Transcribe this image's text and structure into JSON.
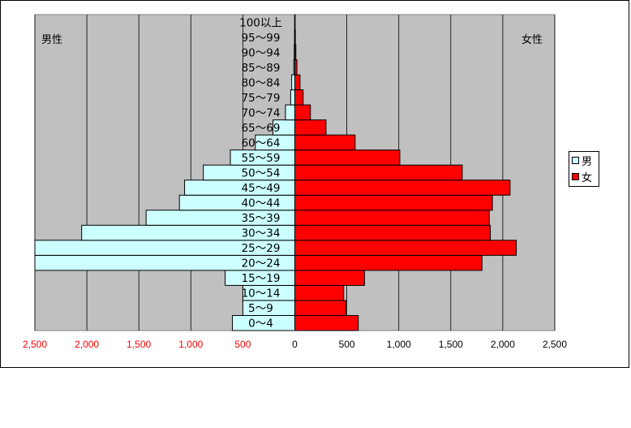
{
  "chart_data": {
    "type": "bar",
    "orientation": "horizontal-pyramid",
    "left_label": "男性",
    "right_label": "女性",
    "categories": [
      "0～4",
      "5～9",
      "10～14",
      "15～19",
      "20～24",
      "25～29",
      "30～34",
      "35～39",
      "40～44",
      "45～49",
      "50～54",
      "55～59",
      "60～64",
      "65～69",
      "70～74",
      "75～79",
      "80～84",
      "85～89",
      "90～94",
      "95～99",
      "100以上"
    ],
    "series": [
      {
        "name": "男",
        "color": "#ccffff",
        "values": [
          600,
          500,
          500,
          670,
          2500,
          2500,
          2050,
          1430,
          1110,
          1060,
          880,
          620,
          380,
          210,
          90,
          40,
          30,
          10,
          5,
          3,
          2
        ]
      },
      {
        "name": "女",
        "color": "#ff0000",
        "values": [
          610,
          490,
          470,
          670,
          1800,
          2130,
          1880,
          1870,
          1900,
          2070,
          1610,
          1010,
          580,
          300,
          150,
          80,
          50,
          20,
          10,
          5,
          3
        ]
      }
    ],
    "xlim": [
      -2500,
      2500
    ],
    "ticks": [
      -2500,
      -2000,
      -1500,
      -1000,
      -500,
      0,
      500,
      1000,
      1500,
      2000,
      2500
    ],
    "tick_labels": [
      "2,500",
      "2,000",
      "1,500",
      "1,000",
      "500",
      "0",
      "500",
      "1,000",
      "1,500",
      "2,000",
      "2,500"
    ],
    "left_tick_color": "#ff0000",
    "right_tick_color": "#000000",
    "plot_background": "#c0c0c0",
    "grid": true,
    "legend_position": "right"
  }
}
